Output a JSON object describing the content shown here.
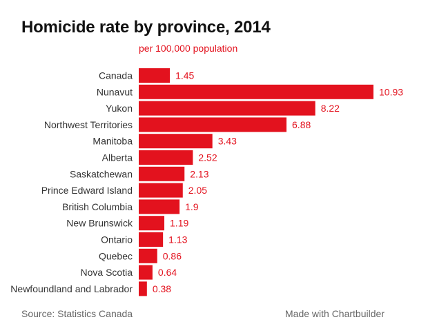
{
  "chart_data": {
    "type": "bar",
    "orientation": "horizontal",
    "title": "Homicide rate by province, 2014",
    "subtitle": "per 100,000 population",
    "categories": [
      "Canada",
      "Nunavut",
      "Yukon",
      "Northwest Territories",
      "Manitoba",
      "Alberta",
      "Saskatchewan",
      "Prince Edward Island",
      "British Columbia",
      "New Brunswick",
      "Ontario",
      "Quebec",
      "Nova Scotia",
      "Newfoundland and Labrador"
    ],
    "values": [
      1.45,
      10.93,
      8.22,
      6.88,
      3.43,
      2.52,
      2.13,
      2.05,
      1.9,
      1.19,
      1.13,
      0.86,
      0.64,
      0.38
    ],
    "value_labels": [
      "1.45",
      "10.93",
      "8.22",
      "6.88",
      "3.43",
      "2.52",
      "2.13",
      "2.05",
      "1.9",
      "1.19",
      "1.13",
      "0.86",
      "0.64",
      "0.38"
    ],
    "xlim": [
      0,
      10.93
    ],
    "grid": false,
    "bar_color": "#e3121e",
    "label_color": "#e3121e"
  },
  "footer": {
    "source": "Source: Statistics Canada",
    "credit": "Made with Chartbuilder"
  }
}
